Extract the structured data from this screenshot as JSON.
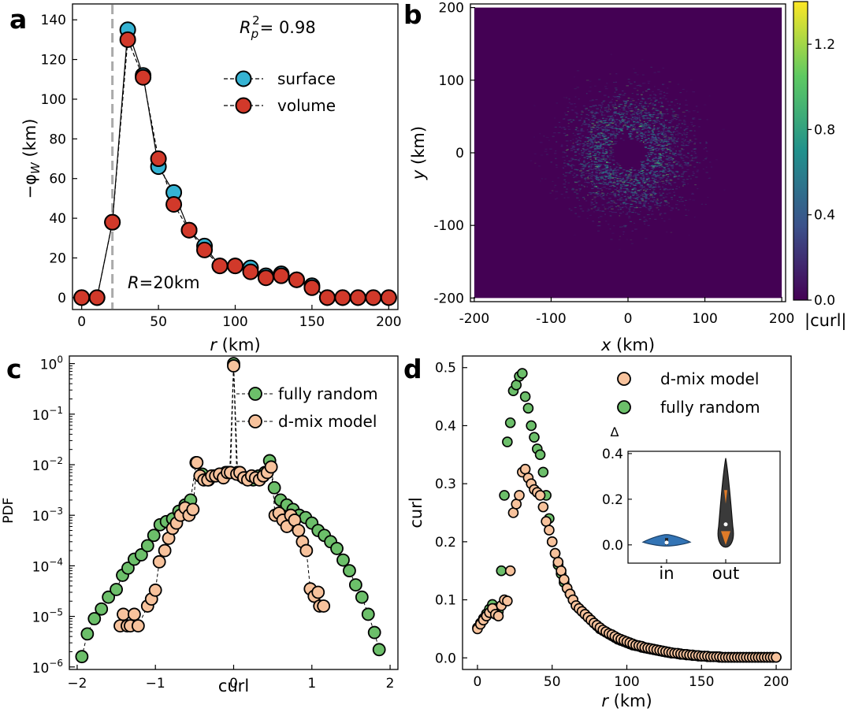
{
  "chart_data": [
    {
      "panel": "a",
      "type": "line",
      "xlabel": "r (km)",
      "ylabel": "−φ_W (km)",
      "xlim": [
        -6,
        206
      ],
      "ylim": [
        -6,
        148
      ],
      "xticks": [
        0,
        50,
        100,
        150,
        200
      ],
      "yticks": [
        0,
        20,
        40,
        60,
        80,
        100,
        120,
        140
      ],
      "annotation_r2": "R_p^2= 0.98",
      "annotation_R": "R=20km",
      "vline_x": 20,
      "legend_position": "upper right",
      "series": [
        {
          "name": "surface",
          "color": "#35b3d3",
          "x": [
            0,
            10,
            20,
            30,
            40,
            50,
            60,
            70,
            80,
            90,
            100,
            110,
            120,
            130,
            140,
            150,
            160,
            170,
            180,
            190,
            200
          ],
          "y": [
            0,
            0,
            38,
            135,
            112,
            66,
            53,
            34,
            26,
            16,
            16,
            15,
            11,
            12,
            9,
            6,
            0,
            0,
            0,
            0,
            0
          ]
        },
        {
          "name": "volume",
          "color": "#d1392a",
          "x": [
            0,
            10,
            20,
            30,
            40,
            50,
            60,
            70,
            80,
            90,
            100,
            110,
            120,
            130,
            140,
            150,
            160,
            170,
            180,
            190,
            200
          ],
          "y": [
            0,
            0,
            38,
            130,
            111,
            70,
            47,
            34,
            24,
            16,
            16,
            13,
            10,
            11,
            9,
            5,
            0,
            0,
            0,
            0,
            0
          ]
        }
      ]
    },
    {
      "panel": "b",
      "type": "heatmap",
      "xlabel": "x (km)",
      "ylabel": "y (km)",
      "xlim": [
        -205,
        205
      ],
      "ylim": [
        -205,
        205
      ],
      "xticks": [
        -200,
        -100,
        0,
        100,
        200
      ],
      "yticks": [
        -200,
        -100,
        0,
        100,
        200
      ],
      "colorbar_label": "|curl|",
      "colorbar_range": [
        0,
        1.4
      ],
      "colorbar_ticks": [
        0.0,
        0.4,
        0.8,
        1.2
      ],
      "colormap": [
        "#440154",
        "#3b528b",
        "#21918c",
        "#5ec962",
        "#fde725"
      ]
    },
    {
      "panel": "c",
      "type": "scatter",
      "xlabel": "curl",
      "ylabel": "PDF",
      "yscale": "log",
      "xlim": [
        -2.1,
        2.1
      ],
      "ylim_exp": [
        -6,
        0.15
      ],
      "xticks": [
        -2,
        -1,
        0,
        1,
        2
      ],
      "ytick_labels": [
        "10^-6",
        "10^-5",
        "10^-4",
        "10^-3",
        "10^-2",
        "10^-1",
        "10^0"
      ],
      "legend_position": "upper right",
      "series": [
        {
          "name": "fully random",
          "color": "#6cbf6a",
          "x": [
            -1.94,
            -1.87,
            -1.78,
            -1.69,
            -1.6,
            -1.5,
            -1.42,
            -1.35,
            -1.27,
            -1.18,
            -1.1,
            -1.02,
            -0.94,
            -0.86,
            -0.78,
            -0.7,
            -0.62,
            -0.55,
            -0.48,
            -0.4,
            -0.32,
            -0.25,
            -0.18,
            -0.1,
            -0.05,
            0,
            0.05,
            0.1,
            0.18,
            0.25,
            0.32,
            0.4,
            0.46,
            0.52,
            0.6,
            0.68,
            0.76,
            0.84,
            0.92,
            1.0,
            1.08,
            1.16,
            1.24,
            1.32,
            1.4,
            1.48,
            1.56,
            1.64,
            1.72,
            1.8,
            1.86
          ],
          "y": [
            1.6e-06,
            4.5e-06,
            9e-06,
            1.4e-05,
            2.4e-05,
            3.4e-05,
            6.5e-05,
            9e-05,
            0.000135,
            0.000165,
            0.00025,
            0.0004,
            0.00065,
            0.00075,
            0.00085,
            0.0012,
            0.0016,
            0.002,
            0.011,
            0.0065,
            0.005,
            0.006,
            0.0065,
            0.007,
            0.007,
            1.0,
            0.007,
            0.006,
            0.0055,
            0.005,
            0.006,
            0.007,
            0.012,
            0.0035,
            0.002,
            0.0016,
            0.0013,
            0.001,
            0.0009,
            0.0007,
            0.0005,
            0.0004,
            0.0003,
            0.00022,
            0.00013,
            8e-05,
            4.2e-05,
            2.4e-05,
            1.1e-05,
            4.8e-06,
            2.2e-06
          ]
        },
        {
          "name": "d-mix model",
          "color": "#f7c29c",
          "x": [
            -1.45,
            -1.41,
            -1.36,
            -1.32,
            -1.27,
            -1.22,
            -1.1,
            -1.05,
            -1.0,
            -0.95,
            -0.88,
            -0.83,
            -0.78,
            -0.73,
            -0.68,
            -0.62,
            -0.57,
            -0.52,
            -0.47,
            -0.43,
            -0.38,
            -0.33,
            -0.28,
            -0.23,
            -0.18,
            -0.13,
            -0.08,
            -0.04,
            0,
            0.04,
            0.08,
            0.13,
            0.18,
            0.23,
            0.28,
            0.33,
            0.38,
            0.43,
            0.48,
            0.53,
            0.58,
            0.63,
            0.68,
            0.73,
            0.78,
            0.83,
            0.88,
            0.93,
            0.98,
            1.03,
            1.08,
            1.1,
            1.15
          ],
          "y": [
            6.5e-06,
            1.1e-05,
            6.5e-06,
            6.5e-06,
            1.1e-05,
            6.5e-06,
            1.6e-05,
            2.2e-05,
            3.3e-05,
            0.00012,
            0.0002,
            0.00035,
            0.00055,
            0.0007,
            0.001,
            0.0014,
            0.001,
            0.0013,
            0.011,
            0.006,
            0.005,
            0.005,
            0.006,
            0.006,
            0.0065,
            0.0055,
            0.007,
            0.007,
            0.9,
            0.0065,
            0.007,
            0.0055,
            0.005,
            0.006,
            0.0055,
            0.005,
            0.006,
            0.007,
            0.009,
            0.001,
            0.0011,
            0.0008,
            0.0006,
            0.001,
            0.0008,
            0.0005,
            0.0003,
            0.0002,
            3.5e-05,
            2.5e-05,
            3e-05,
            1.6e-05,
            1.6e-05
          ]
        }
      ]
    },
    {
      "panel": "d",
      "type": "scatter",
      "xlabel": "r (km)",
      "ylabel": "curl",
      "xlim": [
        -10,
        210
      ],
      "ylim": [
        -0.02,
        0.52
      ],
      "xticks": [
        0,
        50,
        100,
        150,
        200
      ],
      "yticks": [
        0.0,
        0.1,
        0.2,
        0.3,
        0.4,
        0.5
      ],
      "legend_position": "upper right",
      "series": [
        {
          "name": "d-mix model",
          "color": "#f7c29c",
          "x": [
            0,
            2,
            4,
            6,
            8,
            10,
            12,
            14,
            16,
            18,
            20,
            22,
            24,
            26,
            28,
            30,
            32,
            34,
            36,
            38,
            40,
            42,
            44,
            46,
            48,
            50,
            52,
            54,
            56,
            58,
            60,
            62,
            64,
            66,
            68,
            70,
            72,
            74,
            76,
            78,
            80,
            82,
            84,
            86,
            88,
            90,
            92,
            94,
            96,
            98,
            100,
            102,
            104,
            106,
            108,
            110,
            112,
            114,
            116,
            118,
            120,
            122,
            124,
            126,
            128,
            130,
            132,
            134,
            136,
            138,
            140,
            142,
            144,
            146,
            148,
            150,
            152,
            154,
            156,
            158,
            160,
            162,
            164,
            166,
            168,
            170,
            172,
            174,
            176,
            178,
            180,
            182,
            184,
            186,
            188,
            190,
            192,
            194,
            196,
            198,
            200
          ],
          "y": [
            0.05,
            0.058,
            0.065,
            0.072,
            0.078,
            0.085,
            0.075,
            0.072,
            0.09,
            0.1,
            0.098,
            0.15,
            0.25,
            0.265,
            0.28,
            0.32,
            0.325,
            0.31,
            0.3,
            0.29,
            0.285,
            0.28,
            0.26,
            0.235,
            0.22,
            0.2,
            0.18,
            0.165,
            0.15,
            0.135,
            0.12,
            0.11,
            0.1,
            0.09,
            0.085,
            0.08,
            0.075,
            0.07,
            0.065,
            0.06,
            0.056,
            0.052,
            0.048,
            0.045,
            0.042,
            0.04,
            0.037,
            0.034,
            0.032,
            0.03,
            0.028,
            0.026,
            0.024,
            0.022,
            0.021,
            0.02,
            0.018,
            0.017,
            0.016,
            0.015,
            0.014,
            0.013,
            0.012,
            0.011,
            0.01,
            0.009,
            0.008,
            0.008,
            0.007,
            0.006,
            0.006,
            0.005,
            0.005,
            0.004,
            0.004,
            0.003,
            0.003,
            0.003,
            0.002,
            0.002,
            0.002,
            0.002,
            0.001,
            0.001,
            0.001,
            0.001,
            0.001,
            0.001,
            0.001,
            0.001,
            0.001,
            0.001,
            0.001,
            0.001,
            0.001,
            0.001,
            0.001,
            0.001,
            0.001,
            0.001,
            0.001
          ]
        },
        {
          "name": "fully random",
          "color": "#6cbf6a",
          "x": [
            0,
            2,
            4,
            6,
            8,
            10,
            12,
            14,
            16,
            18,
            20,
            22,
            24,
            26,
            28,
            30,
            32,
            34,
            36,
            38,
            40,
            42,
            44,
            46,
            48,
            50,
            52,
            54,
            56,
            58,
            60,
            62,
            64,
            66,
            68,
            70,
            72,
            74,
            76,
            78,
            80,
            82,
            84,
            86,
            88,
            90,
            92,
            94,
            96,
            98,
            100,
            102,
            104,
            106,
            108,
            110,
            112,
            114,
            116,
            118,
            120,
            122,
            124,
            126,
            128,
            130,
            132,
            134,
            136,
            138,
            140,
            142,
            144,
            146,
            148,
            150,
            152,
            154,
            156,
            158,
            160,
            162,
            164,
            166,
            168,
            170,
            172,
            174,
            176,
            178,
            180,
            182,
            184,
            186,
            188,
            190,
            192,
            194,
            196,
            198,
            200
          ],
          "y": [
            0.052,
            0.06,
            0.068,
            0.076,
            0.084,
            0.092,
            0.085,
            0.08,
            0.15,
            0.28,
            0.372,
            0.405,
            0.46,
            0.47,
            0.485,
            0.49,
            0.45,
            0.43,
            0.4,
            0.38,
            0.36,
            0.35,
            0.32,
            0.28,
            0.24,
            0.2,
            0.18,
            0.16,
            0.145,
            0.13,
            0.12,
            0.11,
            0.1,
            0.09,
            0.085,
            0.08,
            0.075,
            0.07,
            0.065,
            0.06,
            0.055,
            0.05,
            0.047,
            0.044,
            0.041,
            0.038,
            0.035,
            0.032,
            0.03,
            0.028,
            0.026,
            0.024,
            0.022,
            0.021,
            0.02,
            0.018,
            0.017,
            0.016,
            0.015,
            0.014,
            0.013,
            0.012,
            0.011,
            0.01,
            0.009,
            0.008,
            0.008,
            0.007,
            0.006,
            0.006,
            0.005,
            0.005,
            0.004,
            0.004,
            0.003,
            0.003,
            0.003,
            0.002,
            0.002,
            0.002,
            0.002,
            0.001,
            0.001,
            0.001,
            0.001,
            0.001,
            0.001,
            0.001,
            0.001,
            0.001,
            0.001,
            0.001,
            0.001,
            0.001,
            0.001,
            0.001,
            0.001,
            0.001,
            0.001,
            0.001,
            0.001
          ]
        }
      ],
      "inset": {
        "type": "violin",
        "ylabel": "Δ",
        "categories": [
          "in",
          "out"
        ],
        "ylim": [
          -0.08,
          0.41
        ],
        "yticks": [
          0.0,
          0.2,
          0.4
        ],
        "medians": [
          0.01,
          0.09
        ],
        "ranges": [
          [
            -0.005,
            0.045
          ],
          [
            -0.01,
            0.38
          ]
        ],
        "colors": [
          "#3374b5",
          "#3a3a3a"
        ],
        "accent": "#e07b28"
      }
    }
  ],
  "labels": {
    "panel_a": "a",
    "panel_b": "b",
    "panel_c": "c",
    "panel_d": "d"
  }
}
